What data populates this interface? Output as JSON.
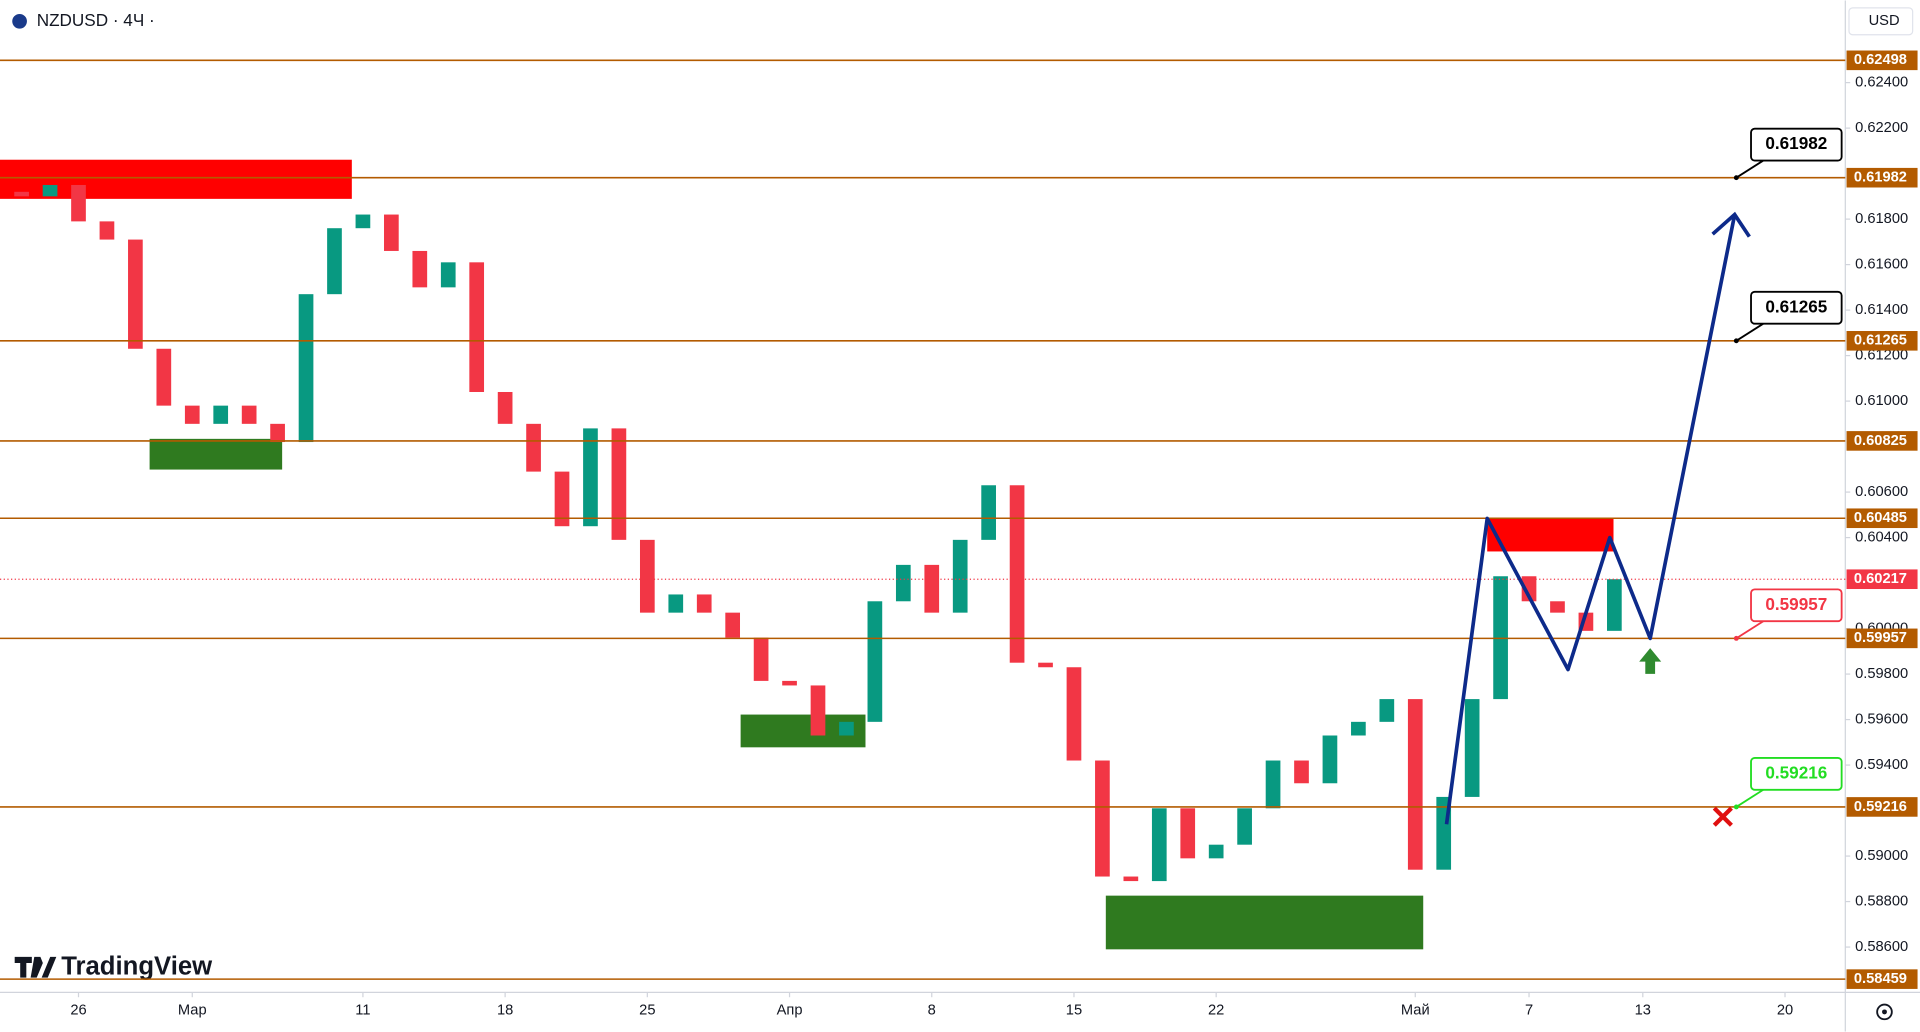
{
  "header": {
    "symbol": "NZDUSD · 4Ч ·",
    "currency": "USD"
  },
  "logo": "TradingView",
  "chart_data": {
    "type": "candlestick",
    "xlim": [
      -2.76,
      62.12
    ],
    "ylim": [
      0.58401,
      0.62761
    ],
    "xticks": [
      {
        "value": 0,
        "label": "26"
      },
      {
        "value": 4,
        "label": "Мар"
      },
      {
        "value": 10,
        "label": "11"
      },
      {
        "value": 15,
        "label": "18"
      },
      {
        "value": 20,
        "label": "25"
      },
      {
        "value": 25,
        "label": "Апр"
      },
      {
        "value": 30,
        "label": "8"
      },
      {
        "value": 35,
        "label": "15"
      },
      {
        "value": 40,
        "label": "22"
      },
      {
        "value": 47,
        "label": "Май"
      },
      {
        "value": 51,
        "label": "7"
      },
      {
        "value": 55,
        "label": "13"
      },
      {
        "value": 60,
        "label": "20"
      }
    ],
    "yticks": [
      {
        "value": 0.624,
        "label": "0.62400"
      },
      {
        "value": 0.622,
        "label": "0.62200"
      },
      {
        "value": 0.618,
        "label": "0.61800"
      },
      {
        "value": 0.616,
        "label": "0.61600"
      },
      {
        "value": 0.614,
        "label": "0.61400"
      },
      {
        "value": 0.612,
        "label": "0.61200"
      },
      {
        "value": 0.61,
        "label": "0.61000"
      },
      {
        "value": 0.606,
        "label": "0.60600"
      },
      {
        "value": 0.604,
        "label": "0.60400"
      },
      {
        "value": 0.6,
        "label": "0.60000"
      },
      {
        "value": 0.598,
        "label": "0.59800"
      },
      {
        "value": 0.596,
        "label": "0.59600"
      },
      {
        "value": 0.594,
        "label": "0.59400"
      },
      {
        "value": 0.59,
        "label": "0.59000"
      },
      {
        "value": 0.588,
        "label": "0.58800"
      },
      {
        "value": 0.586,
        "label": "0.58600"
      }
    ],
    "candles": {
      "up_color": "#089981",
      "down_color": "#f23645",
      "x": [
        -2,
        -1,
        0,
        1,
        2,
        3,
        4,
        5,
        6,
        7,
        8,
        9,
        10,
        11,
        12,
        13,
        14,
        15,
        16,
        17,
        18,
        19,
        20,
        21,
        22,
        23,
        24,
        25,
        26,
        27,
        28,
        29,
        30,
        31,
        32,
        33,
        34,
        35,
        36,
        37,
        38,
        39,
        40,
        41,
        42,
        43,
        44,
        45,
        46,
        47,
        48,
        49,
        50,
        51,
        52,
        53,
        54
      ],
      "open": [
        0.6192,
        0.619,
        0.6195,
        0.6179,
        0.6171,
        0.6123,
        0.6098,
        0.609,
        0.6098,
        0.609,
        0.6082,
        0.6147,
        0.6176,
        0.6182,
        0.6166,
        0.615,
        0.6161,
        0.6104,
        0.609,
        0.6069,
        0.6045,
        0.6088,
        0.6039,
        0.6007,
        0.6015,
        0.6007,
        0.5996,
        0.5977,
        0.5975,
        0.5953,
        0.5959,
        0.6012,
        0.6028,
        0.6007,
        0.6039,
        0.6063,
        0.5985,
        0.5983,
        0.5942,
        0.5891,
        0.5889,
        0.5921,
        0.5899,
        0.5905,
        0.5921,
        0.5942,
        0.5932,
        0.5953,
        0.5959,
        0.5969,
        0.5894,
        0.5926,
        0.5969,
        0.6023,
        0.6012,
        0.6007,
        0.5999
      ],
      "close": [
        0.619,
        0.6195,
        0.6179,
        0.6171,
        0.6123,
        0.6098,
        0.609,
        0.6098,
        0.609,
        0.6082,
        0.6147,
        0.6176,
        0.6182,
        0.6166,
        0.615,
        0.6161,
        0.6104,
        0.609,
        0.6069,
        0.6045,
        0.6088,
        0.6039,
        0.6007,
        0.6015,
        0.6007,
        0.5996,
        0.5977,
        0.5975,
        0.5953,
        0.5959,
        0.6012,
        0.6028,
        0.6007,
        0.6039,
        0.6063,
        0.5985,
        0.5983,
        0.5942,
        0.5891,
        0.5889,
        0.5921,
        0.5899,
        0.5905,
        0.5921,
        0.5942,
        0.5932,
        0.5953,
        0.5959,
        0.5969,
        0.5894,
        0.5926,
        0.5969,
        0.6023,
        0.6012,
        0.6007,
        0.5999,
        0.60217
      ]
    },
    "level_color": "#b35b00",
    "levels": [
      0.62498,
      0.61982,
      0.61265,
      0.60825,
      0.60485,
      0.59957,
      0.59216,
      0.58459
    ],
    "last_price": {
      "value": 0.60217,
      "color": "#f23645"
    },
    "callouts": [
      {
        "value": 0.61982,
        "color": "#000000"
      },
      {
        "value": 0.61265,
        "color": "#000000"
      },
      {
        "value": 0.59957,
        "color": "#f23645"
      },
      {
        "value": 0.59216,
        "color": "#22dd22"
      }
    ],
    "zones": [
      {
        "x0": -2.76,
        "x1": 9.61,
        "y0": 0.61889,
        "y1": 0.62061,
        "color": "#ff0000"
      },
      {
        "x0": 2.5,
        "x1": 7.16,
        "y0": 0.60699,
        "y1": 0.60834,
        "color": "#2f7a1f"
      },
      {
        "x0": 23.28,
        "x1": 27.67,
        "y0": 0.59478,
        "y1": 0.59622,
        "color": "#2f7a1f"
      },
      {
        "x0": 36.12,
        "x1": 47.28,
        "y0": 0.5859,
        "y1": 0.58826,
        "color": "#2f7a1f"
      },
      {
        "x0": 49.53,
        "x1": 53.97,
        "y0": 0.60339,
        "y1": 0.60484,
        "color": "#ff0000"
      }
    ],
    "projection": {
      "color": "#0d2a8a",
      "x": [
        48.1,
        49.53,
        52.37,
        53.84,
        55.26,
        58.23
      ],
      "y": [
        0.5914,
        0.60484,
        0.5982,
        0.604,
        0.59957,
        0.6182
      ]
    }
  }
}
